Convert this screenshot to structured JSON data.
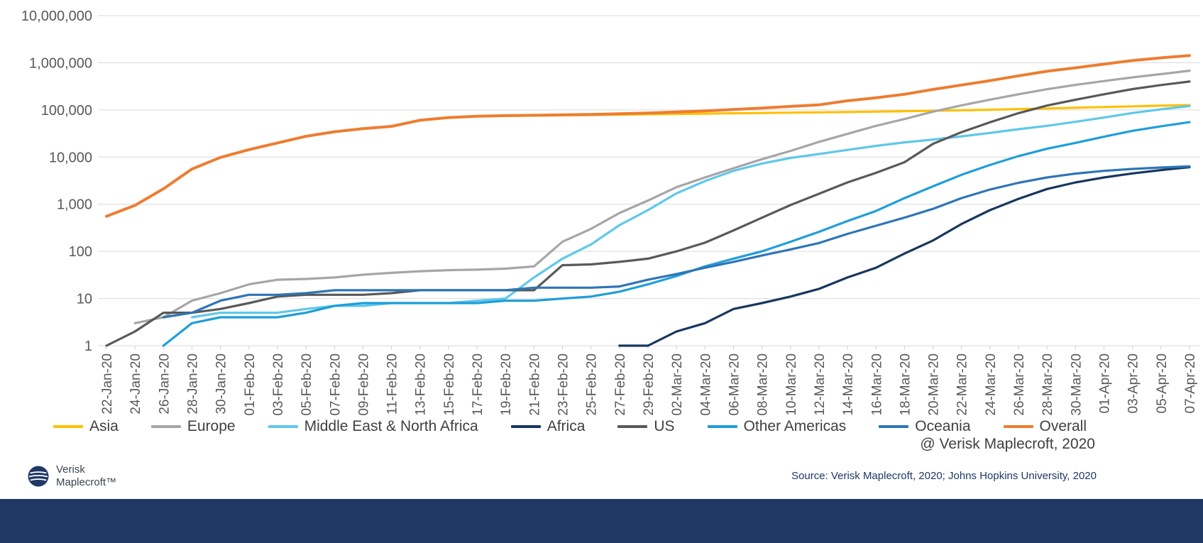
{
  "page": {
    "attribution": "@ Verisk Maplecroft, 2020",
    "source_text": "Source: Verisk Maplecroft, 2020; Johns Hopkins University, 2020",
    "logo": {
      "line1": "Verisk",
      "line2": "Maplecroft™"
    }
  },
  "colors": {
    "grid": "#D9D9D9",
    "tick": "#C9C9C9",
    "axis_text": "#595959",
    "legend_text": "#404040",
    "footer_bar": "#1F3864",
    "source_text": "#1F3864",
    "logo_navy": "#1F3864"
  },
  "chart_data": {
    "type": "line",
    "y_scale": "log",
    "ylim": [
      1,
      10000000
    ],
    "y_ticks": [
      1,
      10,
      100,
      1000,
      10000,
      100000,
      1000000,
      10000000
    ],
    "grid": "horizontal",
    "legend_position": "bottom",
    "x": [
      "22-Jan-20",
      "24-Jan-20",
      "26-Jan-20",
      "28-Jan-20",
      "30-Jan-20",
      "01-Feb-20",
      "03-Feb-20",
      "05-Feb-20",
      "07-Feb-20",
      "09-Feb-20",
      "11-Feb-20",
      "13-Feb-20",
      "15-Feb-20",
      "17-Feb-20",
      "19-Feb-20",
      "21-Feb-20",
      "23-Feb-20",
      "25-Feb-20",
      "27-Feb-20",
      "29-Feb-20",
      "02-Mar-20",
      "04-Mar-20",
      "06-Mar-20",
      "08-Mar-20",
      "10-Mar-20",
      "12-Mar-20",
      "14-Mar-20",
      "16-Mar-20",
      "18-Mar-20",
      "20-Mar-20",
      "22-Mar-20",
      "24-Mar-20",
      "26-Mar-20",
      "28-Mar-20",
      "30-Mar-20",
      "01-Apr-20",
      "03-Apr-20",
      "05-Apr-20",
      "07-Apr-20"
    ],
    "series": [
      {
        "name": "Asia",
        "color": "#FFC000",
        "values": [
          555,
          941,
          2100,
          5570,
          9800,
          14350,
          19800,
          27400,
          34100,
          39800,
          44400,
          59900,
          68400,
          72500,
          74700,
          75800,
          77100,
          78200,
          79500,
          81000,
          82300,
          83500,
          84800,
          86100,
          87400,
          88700,
          90200,
          91900,
          93800,
          96000,
          98500,
          101000,
          104000,
          107500,
          111000,
          115000,
          119000,
          123000,
          127000
        ]
      },
      {
        "name": "Europe",
        "color": "#A6A6A6",
        "values": [
          null,
          3,
          4,
          9,
          13,
          20,
          25,
          26,
          28,
          32,
          35,
          38,
          40,
          41,
          43,
          48,
          160,
          300,
          650,
          1200,
          2300,
          3700,
          5800,
          9000,
          13500,
          21000,
          31000,
          46000,
          64000,
          92000,
          125000,
          165000,
          215000,
          275000,
          340000,
          410000,
          490000,
          575000,
          680000
        ]
      },
      {
        "name": "Middle East & North Africa",
        "color": "#5FC8E9",
        "values": [
          null,
          null,
          null,
          4,
          5,
          5,
          5,
          6,
          7,
          7,
          8,
          8,
          8,
          9,
          10,
          28,
          70,
          140,
          360,
          750,
          1700,
          3100,
          5100,
          7300,
          9600,
          11600,
          14200,
          17300,
          20500,
          23500,
          27500,
          32500,
          39000,
          46000,
          56000,
          69000,
          86000,
          103000,
          121000
        ]
      },
      {
        "name": "Africa",
        "color": "#17375E",
        "values": [
          null,
          null,
          null,
          null,
          null,
          null,
          null,
          null,
          null,
          null,
          null,
          null,
          null,
          null,
          null,
          null,
          null,
          null,
          1,
          1,
          2,
          3,
          6,
          8,
          11,
          16,
          28,
          45,
          90,
          170,
          380,
          750,
          1300,
          2100,
          2900,
          3700,
          4500,
          5300,
          6100
        ]
      },
      {
        "name": "US",
        "color": "#595959",
        "values": [
          1,
          2,
          5,
          5,
          6,
          8,
          11,
          12,
          12,
          12,
          13,
          15,
          15,
          15,
          15,
          15,
          51,
          53,
          60,
          70,
          100,
          153,
          278,
          518,
          959,
          1663,
          2900,
          4632,
          7783,
          19100,
          33700,
          54900,
          85400,
          123800,
          164600,
          215000,
          277000,
          337000,
          399000
        ]
      },
      {
        "name": "Other Americas",
        "color": "#1F9ED9",
        "values": [
          null,
          null,
          1,
          3,
          4,
          4,
          4,
          5,
          7,
          8,
          8,
          8,
          8,
          8,
          9,
          9,
          10,
          11,
          14,
          20,
          30,
          48,
          70,
          100,
          160,
          260,
          440,
          720,
          1350,
          2400,
          4200,
          6800,
          10500,
          15000,
          20000,
          27000,
          36000,
          45000,
          55000
        ]
      },
      {
        "name": "Oceania",
        "color": "#2E75B6",
        "values": [
          null,
          null,
          4,
          5,
          9,
          12,
          12,
          13,
          15,
          15,
          15,
          15,
          15,
          15,
          15,
          17,
          17,
          17,
          18,
          25,
          33,
          45,
          60,
          82,
          110,
          150,
          235,
          350,
          520,
          800,
          1350,
          2050,
          2850,
          3700,
          4450,
          5100,
          5600,
          6000,
          6350
        ]
      },
      {
        "name": "Overall",
        "color": "#ED7D31",
        "values": [
          555,
          946,
          2120,
          5580,
          9830,
          14400,
          19900,
          27600,
          34400,
          40150,
          44800,
          60400,
          69000,
          73300,
          75600,
          76900,
          79000,
          80400,
          82700,
          86000,
          90300,
          95100,
          101800,
          109800,
          118600,
          128300,
          156100,
          181500,
          214900,
          272200,
          337000,
          418000,
          529600,
          660700,
          782400,
          932600,
          1116700,
          1272100,
          1426100
        ]
      }
    ]
  }
}
